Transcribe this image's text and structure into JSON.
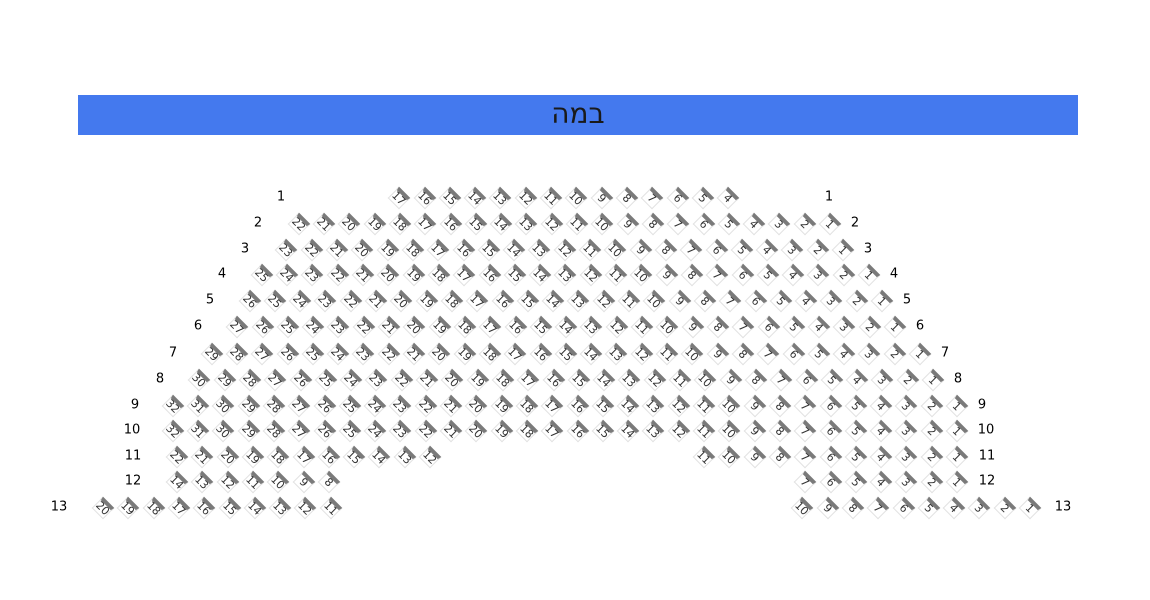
{
  "stage": {
    "label": "במה",
    "color": "#4479ee"
  },
  "seat_bar_color": "#7a7a7a",
  "rows": [
    {
      "label": "1",
      "blocks": [
        [
          17,
          16,
          15,
          14,
          13,
          12,
          11,
          10,
          9,
          8,
          7,
          6,
          5,
          4
        ]
      ]
    },
    {
      "label": "2",
      "blocks": [
        [
          22,
          21,
          20,
          19,
          18,
          17,
          16,
          15,
          14,
          13,
          12,
          11,
          10,
          9,
          8,
          7,
          6,
          5,
          4,
          3,
          2,
          1
        ]
      ]
    },
    {
      "label": "3",
      "blocks": [
        [
          23,
          22,
          21,
          20,
          19,
          18,
          17,
          16,
          15,
          14,
          13,
          12,
          11,
          10,
          9,
          8,
          7,
          6,
          5,
          4,
          3,
          2,
          1
        ]
      ]
    },
    {
      "label": "4",
      "blocks": [
        [
          25,
          24,
          23,
          22,
          21,
          20,
          19,
          18,
          17,
          16,
          15,
          14,
          13,
          12,
          11,
          10,
          9,
          8,
          7,
          6,
          5,
          4,
          3,
          2,
          1
        ]
      ]
    },
    {
      "label": "5",
      "blocks": [
        [
          26,
          25,
          24,
          23,
          22,
          21,
          20,
          19,
          18,
          17,
          16,
          15,
          14,
          13,
          12,
          11,
          10,
          9,
          8,
          7,
          6,
          5,
          4,
          3,
          2,
          1
        ]
      ]
    },
    {
      "label": "6",
      "blocks": [
        [
          27,
          26,
          25,
          24,
          23,
          22,
          21,
          20,
          19,
          18,
          17,
          16,
          15,
          14,
          13,
          12,
          11,
          10,
          9,
          8,
          7,
          6,
          5,
          4,
          3,
          2,
          1
        ]
      ]
    },
    {
      "label": "7",
      "blocks": [
        [
          29,
          28,
          27,
          26,
          25,
          24,
          23,
          22,
          21,
          20,
          19,
          18,
          17,
          16,
          15,
          14,
          13,
          12,
          11,
          10,
          9,
          8,
          7,
          6,
          5,
          4,
          3,
          2,
          1
        ]
      ]
    },
    {
      "label": "8",
      "blocks": [
        [
          30,
          29,
          28,
          27,
          26,
          25,
          24,
          23,
          22,
          21,
          20,
          19,
          18,
          17,
          16,
          15,
          14,
          13,
          12,
          11,
          10,
          9,
          8,
          7,
          6,
          5,
          4,
          3,
          2,
          1
        ]
      ]
    },
    {
      "label": "9",
      "blocks": [
        [
          32,
          31,
          30,
          29,
          28,
          27,
          26,
          25,
          24,
          23,
          22,
          21,
          20,
          19,
          18,
          17,
          16,
          15,
          14,
          13,
          12,
          11,
          10,
          9,
          8,
          7,
          6,
          5,
          4,
          3,
          2,
          1
        ]
      ]
    },
    {
      "label": "10",
      "blocks": [
        [
          32,
          31,
          30,
          29,
          28,
          27,
          26,
          25,
          24,
          23,
          22,
          21,
          20,
          19,
          18,
          17,
          16,
          15,
          14,
          13,
          12,
          11,
          10,
          9,
          8,
          7,
          6,
          5,
          4,
          3,
          2,
          1
        ]
      ]
    },
    {
      "label": "11",
      "blocks": [
        [
          22,
          21,
          20,
          19,
          18,
          17,
          16,
          15,
          14,
          13,
          12
        ],
        [
          11,
          10,
          9,
          8,
          7,
          6,
          5,
          4,
          3,
          2,
          1
        ]
      ]
    },
    {
      "label": "12",
      "blocks": [
        [
          14,
          13,
          12,
          11,
          10,
          9,
          8
        ],
        [
          7,
          6,
          5,
          4,
          3,
          2,
          1
        ]
      ]
    },
    {
      "label": "13",
      "blocks": [
        [
          20,
          19,
          18,
          17,
          16,
          15,
          14,
          13,
          12,
          11
        ],
        [
          10,
          9,
          8,
          7,
          6,
          5,
          4,
          3,
          2,
          1
        ]
      ]
    }
  ]
}
